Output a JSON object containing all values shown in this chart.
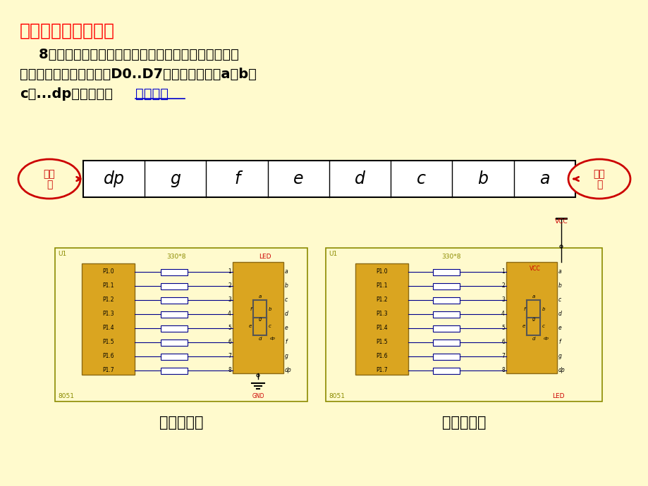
{
  "bg_color": "#FFFACD",
  "title": "数码管段码的编码：",
  "title_color": "#FF0000",
  "body_text1": "    8段正好是一个字节，通常采用如下编码方式。（这种",
  "body_text2": "编码需单片机数据总线的D0..D7分别和数码管的a、b、",
  "body_text3": "c、...dp对应相连。",
  "link_text": "如图所示",
  "segments": [
    "dp",
    "g",
    "f",
    "e",
    "d",
    "c",
    "b",
    "a"
  ],
  "caption1": "共阴数码管",
  "caption2": "共阳数码管",
  "pins": [
    "P1.0",
    "P1.1",
    "P1.2",
    "P1.3",
    "P1.4",
    "P1.5",
    "P1.6",
    "P1.7"
  ],
  "seg_labels": [
    "a",
    "b",
    "c",
    "d",
    "e",
    "f",
    "g",
    "dp"
  ],
  "red_text": "#CC0000",
  "blue_line": "#00008B",
  "dark_yellow": "#8B8B00",
  "gold": "#DAA520",
  "gold_border": "#8B6914"
}
